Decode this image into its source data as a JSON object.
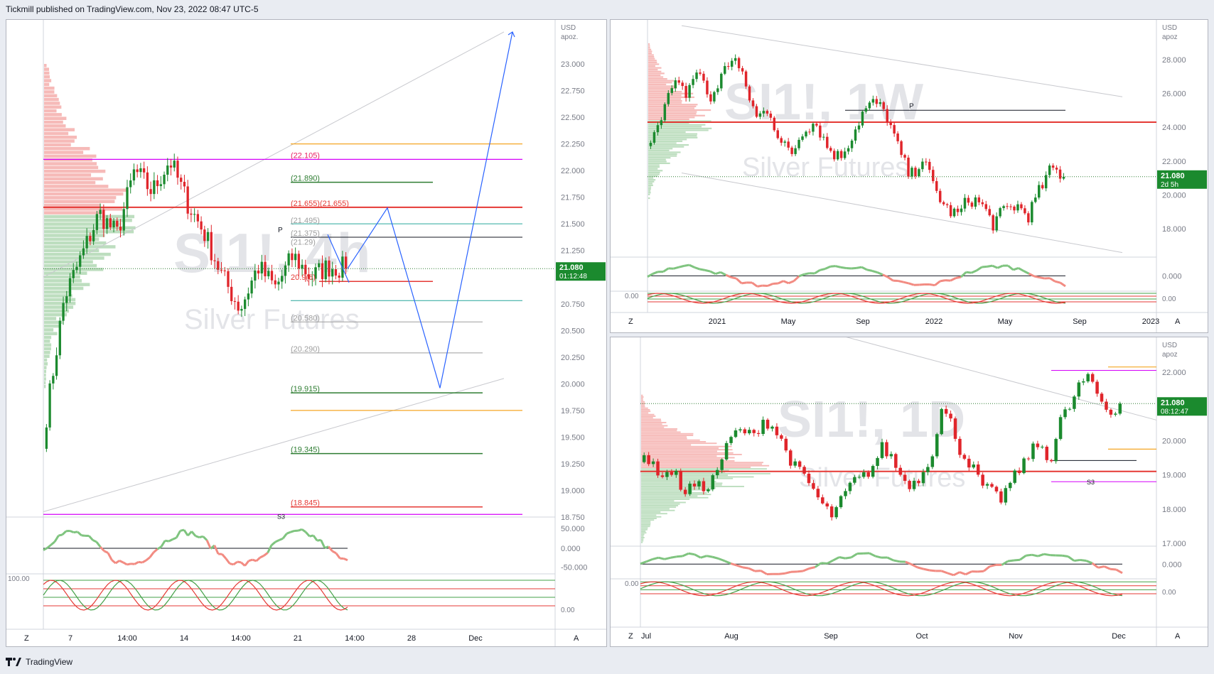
{
  "header": {
    "published": "Tickmill published on TradingView.com, Nov 23, 2022 08:47 UTC-5"
  },
  "footer": {
    "brand": "TradingView"
  },
  "panels": {
    "p4h": {
      "watermark": "SI1!, 4h",
      "watermark_sub": "Silver Futures",
      "currency": "USD",
      "scale_mode": "apoz.",
      "price_ticks": [
        "23.000",
        "22.750",
        "22.500",
        "22.250",
        "22.000",
        "21.750",
        "21.500",
        "21.250",
        "20.750",
        "20.500",
        "20.250",
        "20.000",
        "19.750",
        "19.500",
        "19.250",
        "19.000",
        "18.750"
      ],
      "price_tick_values": [
        23.0,
        22.75,
        22.5,
        22.25,
        22.0,
        21.75,
        21.5,
        21.25,
        20.75,
        20.5,
        20.25,
        20.0,
        19.75,
        19.5,
        19.25,
        19.0,
        18.75
      ],
      "last_price": "21.080",
      "countdown": "01:12:48",
      "time_ticks": [
        "7",
        "14:00",
        "14",
        "14:00",
        "21",
        "14:00",
        "28",
        "Dec"
      ],
      "levels": [
        {
          "label": "(22.105)",
          "value": 22.105,
          "color": "#e91e63"
        },
        {
          "label": "(21.890)",
          "value": 21.89,
          "color": "#2e7d32"
        },
        {
          "label": "(21.655)(21.655)",
          "value": 21.655,
          "color": "#e53935"
        },
        {
          "label": "(21.495)",
          "value": 21.495,
          "color": "#9e9e9e"
        },
        {
          "label": "(21.375)",
          "value": 21.375,
          "color": "#9e9e9e"
        },
        {
          "label": "(21.29)",
          "value": 21.29,
          "color": "#9e9e9e"
        },
        {
          "label": "20.9(6)",
          "value": 20.96,
          "color": "#e53935"
        },
        {
          "label": "(20.580)",
          "value": 20.58,
          "color": "#9e9e9e"
        },
        {
          "label": "(20.290)",
          "value": 20.29,
          "color": "#9e9e9e"
        },
        {
          "label": "(19.915)",
          "value": 19.915,
          "color": "#2e7d32"
        },
        {
          "label": "(19.345)",
          "value": 19.345,
          "color": "#2e7d32"
        },
        {
          "label": "(18.845)",
          "value": 18.845,
          "color": "#e53935"
        }
      ],
      "pivot_label": "P",
      "s3_label": "S3",
      "osc1_ticks": [
        "50.000",
        "0.000",
        "-50.000"
      ],
      "osc2_ticks": [
        "100.00",
        "0.00"
      ],
      "z_label": "Z",
      "a_label": "A"
    },
    "p1w": {
      "watermark": "SI1!, 1W",
      "watermark_sub": "Silver Futures",
      "currency": "USD",
      "scale_mode": "apoz",
      "price_ticks": [
        "28.000",
        "26.000",
        "24.000",
        "22.000",
        "20.000",
        "18.000"
      ],
      "last_price": "21.080",
      "countdown": "2d 5h",
      "time_ticks": [
        "2021",
        "May",
        "Sep",
        "2022",
        "May",
        "Sep",
        "2023"
      ],
      "pivot_label": "P",
      "osc1_ticks": [
        "0.000"
      ],
      "osc2_ticks": [
        "0.00",
        "0.00"
      ],
      "z_label": "Z",
      "a_label": "A"
    },
    "p1d": {
      "watermark": "SI1!, 1D",
      "watermark_sub": "Silver Futures",
      "currency": "USD",
      "scale_mode": "apoz",
      "price_ticks": [
        "22.000",
        "21.000",
        "20.000",
        "19.000",
        "18.000",
        "17.000"
      ],
      "last_price": "21.080",
      "countdown": "08:12:47",
      "time_ticks": [
        "Jul",
        "Aug",
        "Sep",
        "Oct",
        "Nov",
        "Dec"
      ],
      "s3_label": "S3",
      "osc1_ticks": [
        "0.000"
      ],
      "osc2_ticks": [
        "0.00",
        "0.00"
      ],
      "z_label": "Z",
      "a_label": "A"
    }
  },
  "chart_data": [
    {
      "type": "candlestick",
      "symbol": "SI1!",
      "timeframe": "4h",
      "series_text": "Silver Futures",
      "ylim": [
        18.75,
        23.0
      ],
      "last": 21.08,
      "projection_path": [
        21.08,
        21.65,
        19.96,
        23.3
      ]
    },
    {
      "type": "candlestick",
      "symbol": "SI1!",
      "timeframe": "1W",
      "series_text": "Silver Futures",
      "ylim": [
        17.0,
        29.0
      ],
      "last": 21.08,
      "close_path": [
        23.5,
        25.0,
        26.5,
        26.0,
        27.5,
        25.5,
        27.0,
        28.3,
        26.5,
        24.5,
        25.2,
        23.0,
        22.5,
        24.0,
        24.3,
        22.8,
        22.2,
        23.4,
        24.9,
        25.5,
        24.7,
        22.7,
        21.0,
        22.2,
        20.5,
        19.2,
        18.8,
        19.8,
        19.5,
        18.3,
        19.1,
        19.4,
        18.8,
        20.3,
        21.6,
        21.08
      ]
    },
    {
      "type": "candlestick",
      "symbol": "SI1!",
      "timeframe": "1D",
      "series_text": "Silver Futures",
      "ylim": [
        17.0,
        22.6
      ],
      "last": 21.08,
      "close_path": [
        19.6,
        19.2,
        19.0,
        19.1,
        18.5,
        18.7,
        18.6,
        18.9,
        19.6,
        20.2,
        20.3,
        20.1,
        20.6,
        20.4,
        19.9,
        19.3,
        19.0,
        18.6,
        18.1,
        17.8,
        18.3,
        18.8,
        18.9,
        19.2,
        19.8,
        19.5,
        18.9,
        18.7,
        19.0,
        19.6,
        20.9,
        20.5,
        19.6,
        19.3,
        18.7,
        18.5,
        18.3,
        18.8,
        19.2,
        19.7,
        19.9,
        19.4,
        20.6,
        21.0,
        21.7,
        21.8,
        21.2,
        20.8,
        21.08
      ]
    }
  ]
}
